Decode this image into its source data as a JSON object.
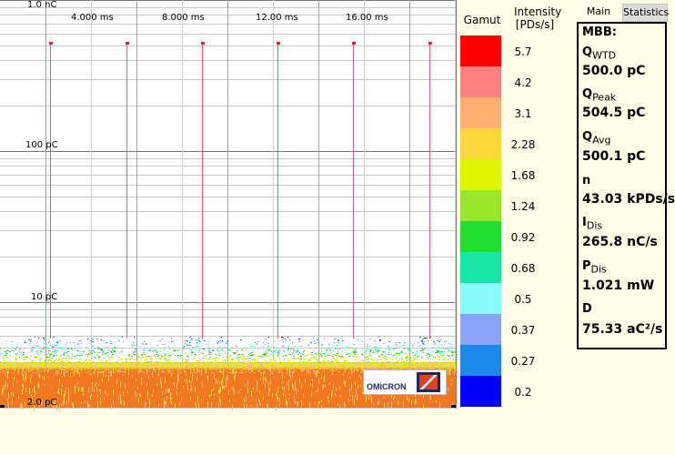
{
  "plot": {
    "y_labels": [
      "1.0 nC",
      "100 pC",
      "10 pC",
      "2.0 pC"
    ],
    "x_labels": [
      "4.000 ms",
      "8.000 ms",
      "12.00 ms",
      "16.00 ms"
    ],
    "logo_text": "OMICRON"
  },
  "gamut": {
    "title": "Gamut",
    "intensity_title": "Intensity",
    "intensity_unit": "[PDs/s]",
    "levels": [
      {
        "label": "5.7",
        "color": "#ff0000"
      },
      {
        "label": "4.2",
        "color": "#ff8080"
      },
      {
        "label": "3.1",
        "color": "#ffb070"
      },
      {
        "label": "2.28",
        "color": "#f8d838"
      },
      {
        "label": "1.68",
        "color": "#ddf500"
      },
      {
        "label": "1.24",
        "color": "#99e62a"
      },
      {
        "label": "0.92",
        "color": "#20dd30"
      },
      {
        "label": "0.68",
        "color": "#18e6a6"
      },
      {
        "label": "0.5",
        "color": "#88fcfc"
      },
      {
        "label": "0.37",
        "color": "#8ca4f8"
      },
      {
        "label": "0.27",
        "color": "#1e88ec"
      },
      {
        "label": "0.2",
        "color": "#0000f8"
      }
    ]
  },
  "tabs": [
    "Main",
    "Statistics"
  ],
  "stats": {
    "title": "MBB:",
    "items": [
      {
        "sym": "Q",
        "sub": "WTD",
        "value": "500.0 pC"
      },
      {
        "sym": "Q",
        "sub": "Peak",
        "value": "504.5 pC"
      },
      {
        "sym": "Q",
        "sub": "Avg",
        "value": "500.1 pC"
      },
      {
        "sym": "n",
        "sub": "",
        "value": "43.03 kPDs/s"
      },
      {
        "sym": "I",
        "sub": "Dis",
        "value": "265.8 nC/s"
      },
      {
        "sym": "P",
        "sub": "Dis",
        "value": "1.021 mW"
      },
      {
        "sym": "D",
        "sub": "",
        "value": "75.33 aC²/s"
      }
    ]
  }
}
